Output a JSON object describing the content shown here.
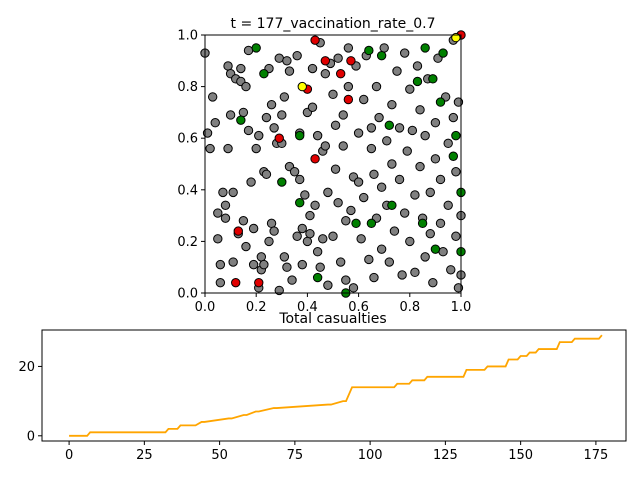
{
  "chart_data": [
    {
      "type": "scatter",
      "title": "t = 177_vaccination_rate_0.7",
      "xlim": [
        0,
        1
      ],
      "ylim": [
        0,
        1
      ],
      "x_ticks": [
        "0.0",
        "0.2",
        "0.4",
        "0.6",
        "0.8",
        "1.0"
      ],
      "y_ticks": [
        "0.0",
        "0.2",
        "0.4",
        "0.6",
        "0.8",
        "1.0"
      ],
      "grid": false,
      "colors": {
        "susceptible": "#808080",
        "vaccinated": "#008000",
        "infected": "#e00000",
        "exposed": "#ffff00",
        "edge": "#000000"
      },
      "series": [
        {
          "group": "grey",
          "color": "#808080",
          "points": [
            [
              0.0,
              0.93
            ],
            [
              0.01,
              0.62
            ],
            [
              0.02,
              0.56
            ],
            [
              0.03,
              0.76
            ],
            [
              0.04,
              0.66
            ],
            [
              0.05,
              0.21
            ],
            [
              0.05,
              0.31
            ],
            [
              0.06,
              0.04
            ],
            [
              0.06,
              0.11
            ],
            [
              0.07,
              0.39
            ],
            [
              0.08,
              0.29
            ],
            [
              0.08,
              0.34
            ],
            [
              0.09,
              0.56
            ],
            [
              0.09,
              0.88
            ],
            [
              0.1,
              0.85
            ],
            [
              0.1,
              0.69
            ],
            [
              0.11,
              0.39
            ],
            [
              0.11,
              0.12
            ],
            [
              0.12,
              0.83
            ],
            [
              0.13,
              0.23
            ],
            [
              0.14,
              0.87
            ],
            [
              0.14,
              0.82
            ],
            [
              0.15,
              0.7
            ],
            [
              0.15,
              0.28
            ],
            [
              0.16,
              0.18
            ],
            [
              0.16,
              0.8
            ],
            [
              0.17,
              0.94
            ],
            [
              0.17,
              0.63
            ],
            [
              0.18,
              0.43
            ],
            [
              0.19,
              0.25
            ],
            [
              0.19,
              0.11
            ],
            [
              0.2,
              0.56
            ],
            [
              0.21,
              0.61
            ],
            [
              0.21,
              0.02
            ],
            [
              0.22,
              0.14
            ],
            [
              0.22,
              0.09
            ],
            [
              0.23,
              0.47
            ],
            [
              0.23,
              0.11
            ],
            [
              0.24,
              0.68
            ],
            [
              0.24,
              0.46
            ],
            [
              0.25,
              0.87
            ],
            [
              0.25,
              0.2
            ],
            [
              0.26,
              0.73
            ],
            [
              0.26,
              0.27
            ],
            [
              0.27,
              0.64
            ],
            [
              0.27,
              0.24
            ],
            [
              0.28,
              0.58
            ],
            [
              0.29,
              0.91
            ],
            [
              0.29,
              0.01
            ],
            [
              0.3,
              0.69
            ],
            [
              0.3,
              0.58
            ],
            [
              0.31,
              0.76
            ],
            [
              0.31,
              0.14
            ],
            [
              0.32,
              0.9
            ],
            [
              0.32,
              0.1
            ],
            [
              0.33,
              0.86
            ],
            [
              0.33,
              0.49
            ],
            [
              0.34,
              0.05
            ],
            [
              0.35,
              0.47
            ],
            [
              0.36,
              0.22
            ],
            [
              0.36,
              0.92
            ],
            [
              0.37,
              0.62
            ],
            [
              0.37,
              0.44
            ],
            [
              0.38,
              0.25
            ],
            [
              0.38,
              0.11
            ],
            [
              0.39,
              0.38
            ],
            [
              0.4,
              0.7
            ],
            [
              0.4,
              0.2
            ],
            [
              0.41,
              0.3
            ],
            [
              0.41,
              0.23
            ],
            [
              0.42,
              0.87
            ],
            [
              0.42,
              0.72
            ],
            [
              0.43,
              0.34
            ],
            [
              0.44,
              0.61
            ],
            [
              0.44,
              0.16
            ],
            [
              0.45,
              0.1
            ],
            [
              0.45,
              0.97
            ],
            [
              0.46,
              0.55
            ],
            [
              0.46,
              0.21
            ],
            [
              0.47,
              0.57
            ],
            [
              0.47,
              0.85
            ],
            [
              0.48,
              0.39
            ],
            [
              0.48,
              0.03
            ],
            [
              0.49,
              0.89
            ],
            [
              0.5,
              0.77
            ],
            [
              0.5,
              0.22
            ],
            [
              0.51,
              0.65
            ],
            [
              0.51,
              0.48
            ],
            [
              0.52,
              0.91
            ],
            [
              0.52,
              0.35
            ],
            [
              0.53,
              0.12
            ],
            [
              0.54,
              0.69
            ],
            [
              0.54,
              0.57
            ],
            [
              0.55,
              0.28
            ],
            [
              0.55,
              0.05
            ],
            [
              0.56,
              0.8
            ],
            [
              0.56,
              0.95
            ],
            [
              0.57,
              0.32
            ],
            [
              0.58,
              0.45
            ],
            [
              0.58,
              0.02
            ],
            [
              0.59,
              0.88
            ],
            [
              0.6,
              0.62
            ],
            [
              0.6,
              0.43
            ],
            [
              0.61,
              0.21
            ],
            [
              0.62,
              0.75
            ],
            [
              0.62,
              0.37
            ],
            [
              0.63,
              0.92
            ],
            [
              0.64,
              0.13
            ],
            [
              0.65,
              0.64
            ],
            [
              0.65,
              0.56
            ],
            [
              0.66,
              0.46
            ],
            [
              0.66,
              0.06
            ],
            [
              0.67,
              0.8
            ],
            [
              0.67,
              0.29
            ],
            [
              0.68,
              0.68
            ],
            [
              0.69,
              0.41
            ],
            [
              0.69,
              0.17
            ],
            [
              0.7,
              0.95
            ],
            [
              0.71,
              0.59
            ],
            [
              0.71,
              0.34
            ],
            [
              0.72,
              0.12
            ],
            [
              0.73,
              0.73
            ],
            [
              0.73,
              0.5
            ],
            [
              0.74,
              0.24
            ],
            [
              0.75,
              0.86
            ],
            [
              0.76,
              0.64
            ],
            [
              0.76,
              0.44
            ],
            [
              0.77,
              0.07
            ],
            [
              0.78,
              0.93
            ],
            [
              0.78,
              0.31
            ],
            [
              0.79,
              0.55
            ],
            [
              0.8,
              0.79
            ],
            [
              0.8,
              0.2
            ],
            [
              0.81,
              0.63
            ],
            [
              0.82,
              0.38
            ],
            [
              0.82,
              0.08
            ],
            [
              0.83,
              0.88
            ],
            [
              0.84,
              0.71
            ],
            [
              0.84,
              0.49
            ],
            [
              0.85,
              0.29
            ],
            [
              0.86,
              0.14
            ],
            [
              0.86,
              0.61
            ],
            [
              0.87,
              0.83
            ],
            [
              0.88,
              0.39
            ],
            [
              0.88,
              0.23
            ],
            [
              0.89,
              0.04
            ],
            [
              0.9,
              0.66
            ],
            [
              0.9,
              0.52
            ],
            [
              0.91,
              0.91
            ],
            [
              0.92,
              0.44
            ],
            [
              0.92,
              0.27
            ],
            [
              0.93,
              0.16
            ],
            [
              0.94,
              0.76
            ],
            [
              0.95,
              0.58
            ],
            [
              0.95,
              0.34
            ],
            [
              0.96,
              0.09
            ],
            [
              0.97,
              0.98
            ],
            [
              0.97,
              0.68
            ],
            [
              0.98,
              0.47
            ],
            [
              0.98,
              0.22
            ],
            [
              0.99,
              0.02
            ],
            [
              0.99,
              0.74
            ],
            [
              1.0,
              0.3
            ],
            [
              1.0,
              0.07
            ]
          ]
        },
        {
          "group": "green",
          "color": "#008000",
          "points": [
            [
              0.14,
              0.67
            ],
            [
              0.2,
              0.95
            ],
            [
              0.23,
              0.85
            ],
            [
              0.3,
              0.43
            ],
            [
              0.37,
              0.61
            ],
            [
              0.37,
              0.35
            ],
            [
              0.44,
              0.06
            ],
            [
              0.55,
              0.0
            ],
            [
              0.59,
              0.27
            ],
            [
              0.64,
              0.94
            ],
            [
              0.65,
              0.27
            ],
            [
              0.69,
              0.92
            ],
            [
              0.72,
              0.65
            ],
            [
              0.73,
              0.34
            ],
            [
              0.83,
              0.82
            ],
            [
              0.85,
              0.27
            ],
            [
              0.86,
              0.95
            ],
            [
              0.89,
              0.83
            ],
            [
              0.9,
              0.17
            ],
            [
              0.92,
              0.74
            ],
            [
              0.93,
              0.93
            ],
            [
              0.97,
              0.53
            ],
            [
              0.98,
              0.61
            ],
            [
              1.0,
              0.39
            ],
            [
              1.0,
              0.16
            ]
          ]
        },
        {
          "group": "red",
          "color": "#e00000",
          "points": [
            [
              0.12,
              0.04
            ],
            [
              0.13,
              0.24
            ],
            [
              0.21,
              0.04
            ],
            [
              0.29,
              0.6
            ],
            [
              0.4,
              0.79
            ],
            [
              0.43,
              0.52
            ],
            [
              0.43,
              0.98
            ],
            [
              0.47,
              0.9
            ],
            [
              0.53,
              0.85
            ],
            [
              0.56,
              0.75
            ],
            [
              0.57,
              0.9
            ],
            [
              1.0,
              1.0
            ]
          ]
        },
        {
          "group": "yellow",
          "color": "#ffff00",
          "points": [
            [
              0.38,
              0.8
            ],
            [
              0.98,
              0.99
            ]
          ]
        }
      ]
    },
    {
      "type": "line",
      "title": "Total casualties",
      "xlim": [
        -9,
        185
      ],
      "ylim": [
        -1.5,
        30.5
      ],
      "x_ticks": [
        "0",
        "25",
        "50",
        "75",
        "100",
        "125",
        "150",
        "175"
      ],
      "y_ticks": [
        "0",
        "20"
      ],
      "line_color": "#ffa500",
      "x": [
        0,
        6,
        7,
        32,
        33,
        36,
        37,
        42,
        44,
        45,
        53,
        54,
        58,
        59,
        62,
        63,
        68,
        69,
        86,
        87,
        91,
        92,
        94,
        108,
        109,
        113,
        114,
        118,
        119,
        131,
        132,
        138,
        139,
        145,
        146,
        149,
        150,
        152,
        153,
        155,
        156,
        162,
        163,
        167,
        168,
        176,
        177
      ],
      "y": [
        0,
        0,
        1,
        1,
        2,
        2,
        3,
        3,
        4,
        4,
        5,
        5,
        6,
        6,
        7,
        7,
        8,
        8,
        9,
        9,
        10,
        10,
        14,
        14,
        15,
        15,
        16,
        16,
        17,
        17,
        19,
        19,
        20,
        20,
        22,
        22,
        23,
        23,
        24,
        24,
        25,
        25,
        27,
        27,
        28,
        28,
        29
      ]
    }
  ]
}
